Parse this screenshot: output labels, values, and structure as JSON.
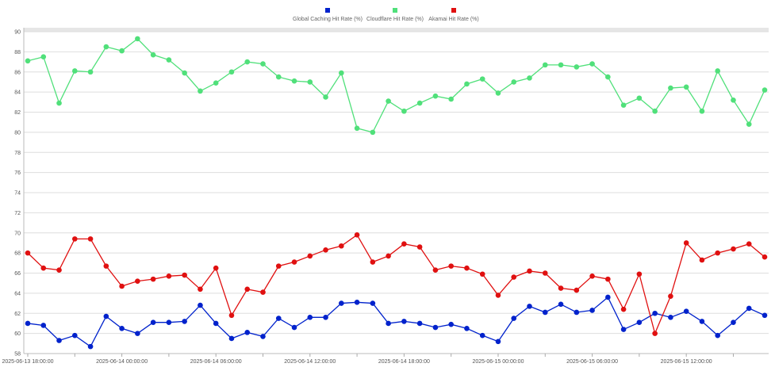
{
  "chart_data": {
    "type": "line",
    "title": "",
    "xlabel": "",
    "ylabel": "",
    "ylim": [
      58,
      90
    ],
    "y_ticks": [
      58,
      60,
      62,
      64,
      66,
      68,
      70,
      72,
      74,
      76,
      78,
      80,
      82,
      84,
      86,
      88,
      90
    ],
    "x_ticks": [
      "2025-06-13 18:00:00",
      "2025-06-14 00:00:00",
      "2025-06-14 06:00:00",
      "2025-06-14 12:00:00",
      "2025-06-14 18:00:00",
      "2025-06-15 00:00:00",
      "2025-06-15 06:00:00",
      "2025-06-15 12:00:00"
    ],
    "x_start": "2025-06-13 18:00:00",
    "x_interval_hours": 1,
    "grid": true,
    "legend_position": "top-center",
    "series": [
      {
        "name": "Global Caching Hit Rate (%)",
        "color": "#0022cc",
        "values": [
          61.0,
          60.8,
          59.3,
          59.8,
          58.7,
          61.7,
          60.5,
          60.0,
          61.1,
          61.1,
          61.2,
          62.8,
          61.0,
          59.5,
          60.1,
          59.7,
          61.5,
          60.6,
          61.6,
          61.6,
          63.0,
          63.1,
          63.0,
          61.0,
          61.2,
          61.0,
          60.6,
          60.9,
          60.5,
          59.8,
          59.2,
          61.5,
          62.7,
          62.1,
          62.9,
          62.1,
          62.3,
          63.6,
          60.4,
          61.1,
          62.0,
          61.6,
          62.2,
          61.2,
          59.8,
          61.1,
          62.5,
          61.8
        ]
      },
      {
        "name": "Cloudflare Hit Rate (%)",
        "color": "#50e07a",
        "values": [
          87.1,
          87.5,
          82.9,
          86.1,
          86.0,
          88.5,
          88.1,
          89.3,
          87.7,
          87.2,
          85.9,
          84.1,
          84.9,
          86.0,
          87.0,
          86.8,
          85.5,
          85.1,
          85.0,
          83.5,
          85.9,
          80.4,
          80.0,
          83.1,
          82.1,
          82.9,
          83.6,
          83.3,
          84.8,
          85.3,
          83.9,
          85.0,
          85.4,
          86.7,
          86.7,
          86.5,
          86.8,
          85.5,
          82.7,
          83.4,
          82.1,
          84.4,
          84.5,
          82.1,
          86.1,
          83.2,
          80.8,
          84.2
        ]
      },
      {
        "name": "Akamai Hit Rate (%)",
        "color": "#e01010",
        "values": [
          68.0,
          66.5,
          66.3,
          69.4,
          69.4,
          66.7,
          64.7,
          65.2,
          65.4,
          65.7,
          65.8,
          64.4,
          66.5,
          61.8,
          64.4,
          64.1,
          66.7,
          67.1,
          67.7,
          68.3,
          68.7,
          69.8,
          67.1,
          67.7,
          68.9,
          68.6,
          66.3,
          66.7,
          66.5,
          65.9,
          63.8,
          65.6,
          66.2,
          66.0,
          64.5,
          64.3,
          65.7,
          65.4,
          62.4,
          65.9,
          60.0,
          63.7,
          69.0,
          67.3,
          68.0,
          68.4,
          68.9,
          67.6
        ]
      }
    ]
  }
}
